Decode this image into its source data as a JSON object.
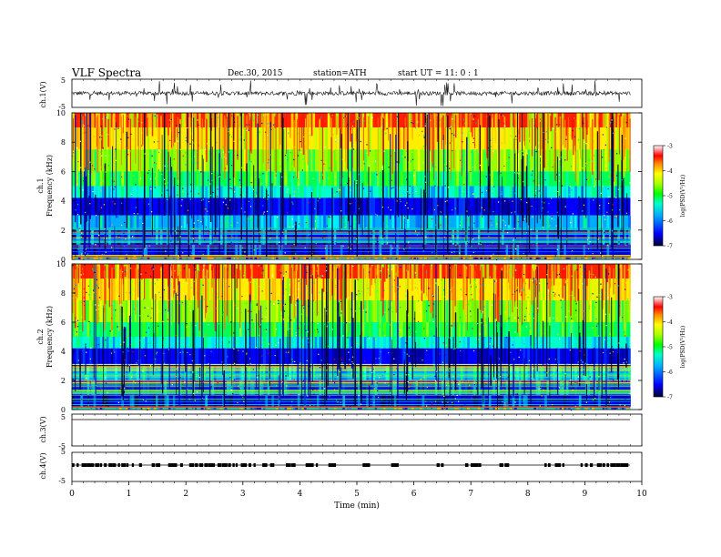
{
  "header": {
    "title": "VLF  Spectra",
    "date": "Dec.30, 2015",
    "station": "station=ATH",
    "start": "start  UT  =    11: 0   : 1"
  },
  "chart_data": [
    {
      "type": "line",
      "panel": "ch1-waveform",
      "ylabel": "ch.1(V)",
      "ylim": [
        -5,
        5
      ],
      "yticks": [
        "5",
        "-5"
      ],
      "baseline": 0,
      "amplitude_range": [
        -4.5,
        4.5
      ]
    },
    {
      "type": "heatmap",
      "panel": "ch1-spectrogram",
      "ylabel_channel": "ch.1",
      "ylabel": "Frequency  (kHz)",
      "ylim": [
        0,
        10
      ],
      "yticks": [
        "0",
        "2",
        "4",
        "6",
        "8",
        "10"
      ],
      "colorbar": {
        "label": "log(PSD(V²/Hz)",
        "range": [
          -7,
          -3
        ],
        "ticks": [
          "-3",
          "-4",
          "-5",
          "-6",
          "-7"
        ]
      }
    },
    {
      "type": "heatmap",
      "panel": "ch2-spectrogram",
      "ylabel_channel": "ch.2",
      "ylabel": "Frequency  (kHz)",
      "ylim": [
        0,
        10
      ],
      "yticks": [
        "0",
        "2",
        "4",
        "6",
        "8",
        "10"
      ],
      "colorbar": {
        "label": "log(PSD(V²/Hz)",
        "range": [
          -7,
          -3
        ],
        "ticks": [
          "-3",
          "-4",
          "-5",
          "-6",
          "-7"
        ]
      }
    },
    {
      "type": "line",
      "panel": "ch3-waveform",
      "ylabel": "ch.3(V)",
      "ylim": [
        -5,
        5
      ],
      "yticks": [
        "5",
        "-5"
      ],
      "level": 0
    },
    {
      "type": "line",
      "panel": "ch4-waveform",
      "ylabel": "ch.4(V)",
      "ylim": [
        -5,
        5
      ],
      "yticks": [
        "5",
        "-5"
      ],
      "level": 0
    }
  ],
  "xaxis": {
    "xlabel": "Time  (min)",
    "xlim": [
      0,
      10
    ],
    "ticks": [
      "0",
      "1",
      "2",
      "3",
      "4",
      "5",
      "6",
      "7",
      "8",
      "9",
      "10"
    ],
    "data_end": 9.8
  },
  "colors": {
    "colormap": [
      "#000080",
      "#0000ff",
      "#00aaff",
      "#00ffcc",
      "#00ff00",
      "#aaff00",
      "#ffff00",
      "#ffaa00",
      "#ff0000",
      "#ffffff"
    ]
  }
}
